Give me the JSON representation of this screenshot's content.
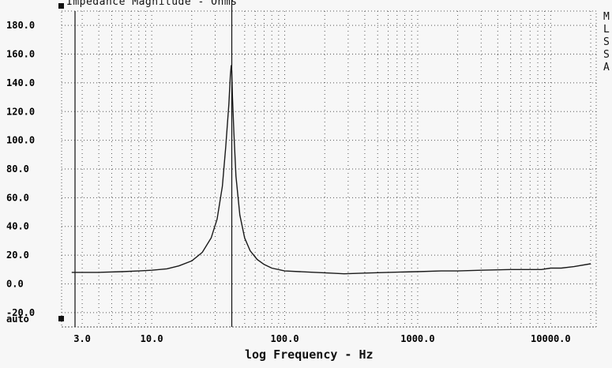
{
  "chart_data": {
    "type": "line",
    "title": "Impedance Magnitude - Ohms",
    "xlabel": "log Frequency - Hz",
    "ylabel": "",
    "x_scale": "log",
    "xlim": [
      2.1,
      22000
    ],
    "ylim": [
      -30,
      190
    ],
    "grid": true,
    "y_ticks": [
      {
        "value": 180,
        "label": "180.0"
      },
      {
        "value": 160,
        "label": "160.0"
      },
      {
        "value": 140,
        "label": "140.0"
      },
      {
        "value": 120,
        "label": "120.0"
      },
      {
        "value": 100,
        "label": "100.0"
      },
      {
        "value": 80,
        "label": "80.0"
      },
      {
        "value": 60,
        "label": "60.0"
      },
      {
        "value": 40,
        "label": "40.0"
      },
      {
        "value": 20,
        "label": "20.0"
      },
      {
        "value": 0,
        "label": "0.0"
      },
      {
        "value": -20,
        "label": "-20.0"
      }
    ],
    "y_bottom_label": "auto",
    "x_ticks": [
      {
        "value": 3,
        "label": "3.0"
      },
      {
        "value": 10,
        "label": "10.0"
      },
      {
        "value": 100,
        "label": "100.0"
      },
      {
        "value": 1000,
        "label": "1000.0"
      },
      {
        "value": 10000,
        "label": "10000.0"
      }
    ],
    "marker_frequency": 40,
    "series": [
      {
        "x": [
          2.5,
          4,
          6,
          8,
          10,
          13,
          16,
          20,
          24,
          28,
          31,
          34,
          36,
          38,
          39,
          39.6,
          40,
          40.5,
          41.5,
          43,
          46,
          50,
          55,
          62,
          70,
          80,
          100,
          130,
          170,
          220,
          280,
          400,
          600,
          1000,
          1500,
          2000,
          3000,
          5000,
          7000,
          8500,
          10000,
          12000,
          15000,
          20000
        ],
        "y": [
          8,
          8,
          8.5,
          9,
          9.5,
          10.5,
          12.5,
          16,
          22,
          32,
          45,
          68,
          95,
          125,
          145,
          152,
          148,
          130,
          105,
          75,
          48,
          32,
          23,
          17,
          13.5,
          11,
          9,
          8.5,
          8,
          7.5,
          7,
          7.5,
          8,
          8.5,
          9,
          9,
          9.5,
          10,
          10,
          10,
          11,
          11,
          12,
          14
        ]
      }
    ]
  },
  "side_letters": [
    "M",
    "L",
    "S",
    "S",
    "A"
  ],
  "colors": {
    "line": "#1a1a1a",
    "grid": "#555555",
    "background": "#f7f7f7"
  }
}
